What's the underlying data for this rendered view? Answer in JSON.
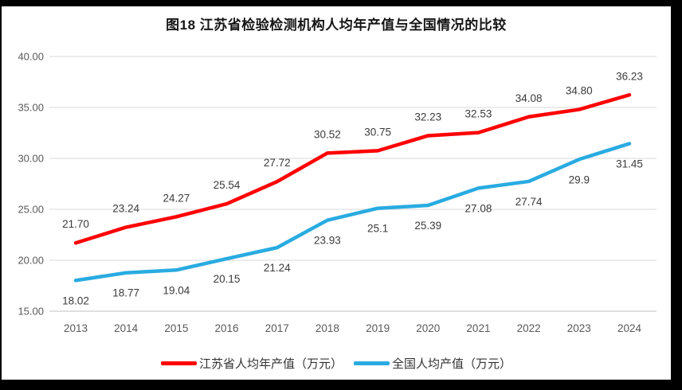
{
  "title": "图18  江苏省检验检测机构人均年产值与全国情况的比较",
  "chart_data": {
    "type": "line",
    "title": "图18  江苏省检验检测机构人均年产值与全国情况的比较",
    "categories": [
      "2013",
      "2014",
      "2015",
      "2016",
      "2017",
      "2018",
      "2019",
      "2020",
      "2021",
      "2022",
      "2023",
      "2024"
    ],
    "series": [
      {
        "name": "江苏省人均年产值（万元）",
        "color": "#fe0000",
        "label_position": "above",
        "values": [
          21.7,
          23.24,
          24.27,
          25.54,
          27.72,
          30.52,
          30.75,
          32.23,
          32.53,
          34.08,
          34.8,
          36.23
        ],
        "labels": [
          "21.70",
          "23.24",
          "24.27",
          "25.54",
          "27.72",
          "30.52",
          "30.75",
          "32.23",
          "32.53",
          "34.08",
          "34.80",
          "36.23"
        ]
      },
      {
        "name": "全国人均产值（万元）",
        "color": "#29abe1",
        "label_position": "below",
        "values": [
          18.02,
          18.77,
          19.04,
          20.15,
          21.24,
          23.93,
          25.1,
          25.39,
          27.08,
          27.74,
          29.9,
          31.45
        ],
        "labels": [
          "18.02",
          "18.77",
          "19.04",
          "20.15",
          "21.24",
          "23.93",
          "25.1",
          "25.39",
          "27.08",
          "27.74",
          "29.9",
          "31.45"
        ]
      }
    ],
    "y_axis": {
      "min": 15,
      "max": 40,
      "step": 5,
      "tick_labels": [
        "15.00",
        "20.00",
        "25.00",
        "30.00",
        "35.00",
        "40.00"
      ]
    },
    "x_axis": {
      "tick_labels": [
        "2013",
        "2014",
        "2015",
        "2016",
        "2017",
        "2018",
        "2019",
        "2020",
        "2021",
        "2022",
        "2023",
        "2024"
      ]
    },
    "grid": true,
    "legend_position": "bottom",
    "style_colors": {
      "grid": "#d9d9d9",
      "axis_line": "#c0c0c0",
      "tick_text": "#595959",
      "data_label_text": "#3b3b3b",
      "title_text": "#151515"
    }
  },
  "legend": {
    "items": [
      {
        "label": "江苏省人均年产值（万元）",
        "color": "#fe0000"
      },
      {
        "label": "全国人均产值（万元）",
        "color": "#29abe1"
      }
    ]
  }
}
